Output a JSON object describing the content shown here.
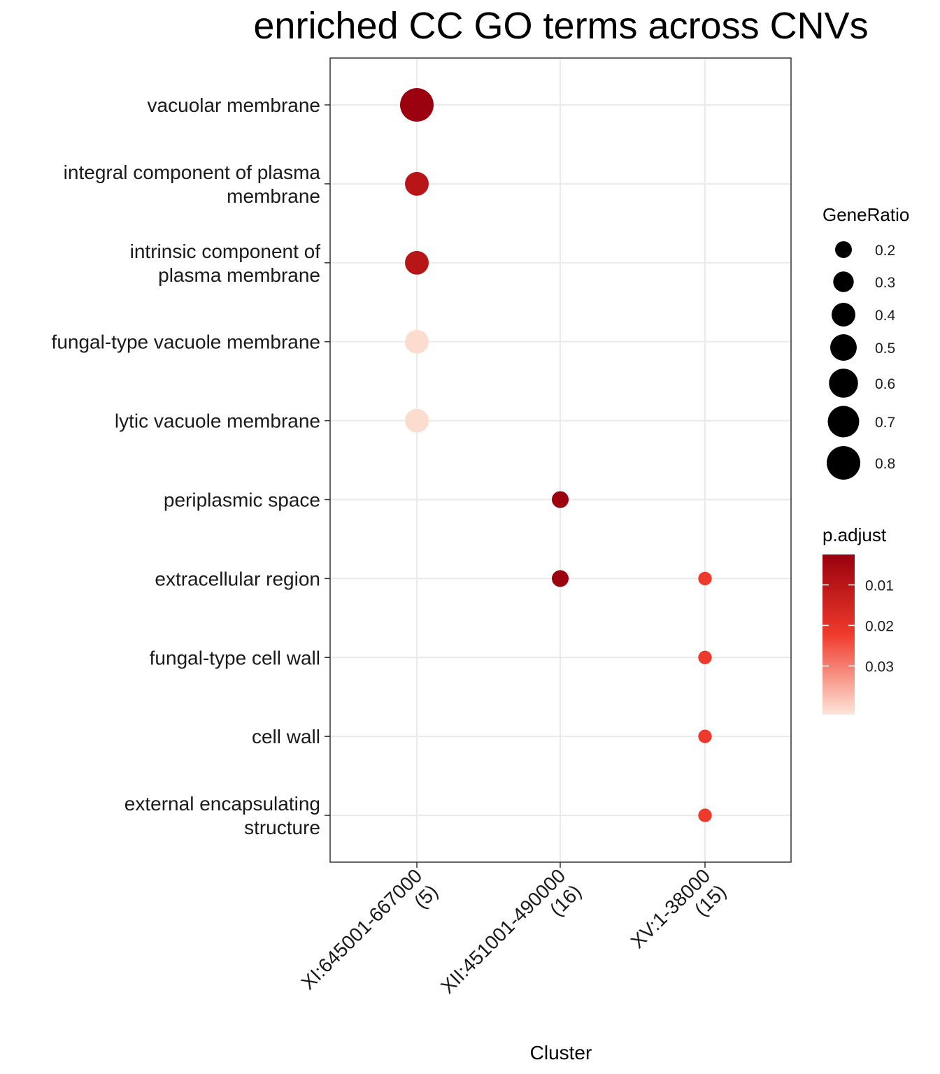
{
  "chart_data": {
    "type": "scatter",
    "title": "enriched CC GO terms across CNVs",
    "xlabel": "Cluster",
    "ylabel": "",
    "x_categories": [
      {
        "name": "XI:645001-667000",
        "count": "(5)"
      },
      {
        "name": "XII:451001-490000",
        "count": "(16)"
      },
      {
        "name": "XV:1-38000",
        "count": "(15)"
      }
    ],
    "y_categories": [
      [
        "vacuolar membrane"
      ],
      [
        "integral component of plasma",
        "membrane"
      ],
      [
        "intrinsic component of",
        "plasma membrane"
      ],
      [
        "fungal-type vacuole membrane"
      ],
      [
        "lytic vacuole membrane"
      ],
      [
        "periplasmic space"
      ],
      [
        "extracellular region"
      ],
      [
        "fungal-type cell wall"
      ],
      [
        "cell wall"
      ],
      [
        "external encapsulating",
        "structure"
      ]
    ],
    "points": [
      {
        "x": 0,
        "y": 0,
        "gene_ratio": 0.8,
        "p_adjust": 0.003
      },
      {
        "x": 0,
        "y": 1,
        "gene_ratio": 0.4,
        "p_adjust": 0.0095
      },
      {
        "x": 0,
        "y": 2,
        "gene_ratio": 0.4,
        "p_adjust": 0.0095
      },
      {
        "x": 0,
        "y": 3,
        "gene_ratio": 0.4,
        "p_adjust": 0.041
      },
      {
        "x": 0,
        "y": 4,
        "gene_ratio": 0.4,
        "p_adjust": 0.041
      },
      {
        "x": 1,
        "y": 5,
        "gene_ratio": 0.2,
        "p_adjust": 0.003
      },
      {
        "x": 1,
        "y": 6,
        "gene_ratio": 0.2,
        "p_adjust": 0.003
      },
      {
        "x": 2,
        "y": 6,
        "gene_ratio": 0.13,
        "p_adjust": 0.022
      },
      {
        "x": 2,
        "y": 7,
        "gene_ratio": 0.13,
        "p_adjust": 0.022
      },
      {
        "x": 2,
        "y": 8,
        "gene_ratio": 0.13,
        "p_adjust": 0.022
      },
      {
        "x": 2,
        "y": 9,
        "gene_ratio": 0.13,
        "p_adjust": 0.022
      }
    ],
    "size_legend": {
      "title": "GeneRatio",
      "values": [
        0.2,
        0.3,
        0.4,
        0.5,
        0.6,
        0.7,
        0.8
      ],
      "labels": [
        "0.2",
        "0.3",
        "0.4",
        "0.5",
        "0.6",
        "0.7",
        "0.8"
      ]
    },
    "color_legend": {
      "title": "p.adjust",
      "range": [
        0.0025,
        0.042
      ],
      "ticks": [
        0.01,
        0.02,
        0.03
      ],
      "tick_labels": [
        "0.01",
        "0.02",
        "0.03"
      ],
      "low_color": "#99000d",
      "mid_color": "#ef3b2c",
      "high_color": "#fee5d9"
    },
    "grid": true,
    "legend_position": "right"
  }
}
